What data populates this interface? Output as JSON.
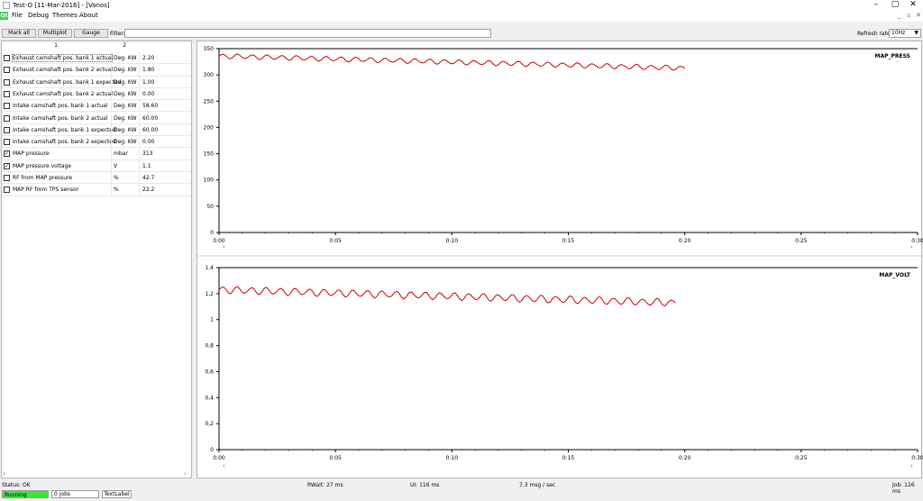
{
  "window": {
    "title": "Test-O [11-Mar-2016] - [Vanos]",
    "controls": [
      "–",
      "▢",
      "✕"
    ]
  },
  "menu": {
    "items": [
      "File",
      "Debug",
      "Themes",
      "About"
    ],
    "mdi_controls": [
      "_",
      "▫",
      "✕"
    ]
  },
  "toolbar": {
    "mark_all": "Mark all",
    "multiplot": "Multiplot",
    "gauge": "Gauge",
    "filter_label": "Filter:",
    "filter_value": "",
    "refresh_label": "Refresh rate:",
    "refresh_value": "10Hz"
  },
  "table": {
    "headers": [
      "1",
      "2"
    ],
    "rows": [
      {
        "name": "Exhaust camshaft pos. bank 1 actual",
        "unit": "Deg. KW",
        "value": "2.20",
        "checked": false
      },
      {
        "name": "Exhaust camshaft pos. bank 2 actual",
        "unit": "Deg. KW",
        "value": "1.80",
        "checked": false
      },
      {
        "name": "Exhaust camshaft pos. bank 1 expected",
        "unit": "Deg. KW",
        "value": "1.00",
        "checked": false
      },
      {
        "name": "Exhaust camshaft pos. bank 2 actual",
        "unit": "Deg. KW",
        "value": "0.00",
        "checked": false
      },
      {
        "name": "Intake camshaft pos. bank 1 actual",
        "unit": "Deg. KW",
        "value": "58.60",
        "checked": false
      },
      {
        "name": "Intake camshaft pos. bank 2 actual",
        "unit": "Deg. KW",
        "value": "60.00",
        "checked": false
      },
      {
        "name": "Intake camshaft pos. bank 1 expected",
        "unit": "Deg. KW",
        "value": "60.00",
        "checked": false
      },
      {
        "name": "Intake camshaft pos. bank 2 expected",
        "unit": "Deg. KW",
        "value": "0.00",
        "checked": false
      },
      {
        "name": "MAP pressure",
        "unit": "mbar",
        "value": "313",
        "checked": true
      },
      {
        "name": "MAP pressure voltage",
        "unit": "V",
        "value": "1.1",
        "checked": true
      },
      {
        "name": "RF from MAP pressure",
        "unit": "%",
        "value": "42.7",
        "checked": false
      },
      {
        "name": "MAP RF from TPS sensor",
        "unit": "%",
        "value": "22.2",
        "checked": false
      }
    ]
  },
  "status": {
    "status_text": "Status: OK",
    "rwait": "RWait:   27 ms",
    "ui": "UI:   116 ms",
    "rate": "7.3 msg / sec",
    "job": "Job:   126 ms",
    "running": "Running",
    "jobs": "0 jobs",
    "text_label": "TextLabel"
  },
  "colors": {
    "series": "#cc0000",
    "running": "#39e639"
  },
  "chart_data": [
    {
      "type": "line",
      "title": "MAP_PRESS",
      "ylim": [
        0,
        350
      ],
      "yticks": [
        "0",
        "50",
        "100",
        "150",
        "200",
        "250",
        "300",
        "350"
      ],
      "xlim": [
        0,
        30
      ],
      "xticks": [
        "0:00",
        "0:05",
        "0:10",
        "0:15",
        "0:20",
        "0:25",
        "0:30"
      ],
      "x_end": 20,
      "start": 336,
      "end": 313,
      "amplitude": 5,
      "series": [
        {
          "values_summary": "oscillating ~336 down to ~313 over 0:00–0:20"
        }
      ]
    },
    {
      "type": "line",
      "title": "MAP_VOLT",
      "ylim": [
        0,
        1.4
      ],
      "yticks": [
        "0",
        "0,2",
        "0,4",
        "0,6",
        "0,8",
        "1",
        "1,2",
        "1,4"
      ],
      "xlim": [
        0,
        30
      ],
      "xticks": [
        "0:00",
        "0:05",
        "0:10",
        "0:15",
        "0:20",
        "0:25",
        "0:30"
      ],
      "x_end": 19.6,
      "start": 1.23,
      "end": 1.13,
      "amplitude": 0.03,
      "series": [
        {
          "values_summary": "oscillating ~1.23 down to ~1.13 over 0:00–0:20"
        }
      ]
    }
  ]
}
